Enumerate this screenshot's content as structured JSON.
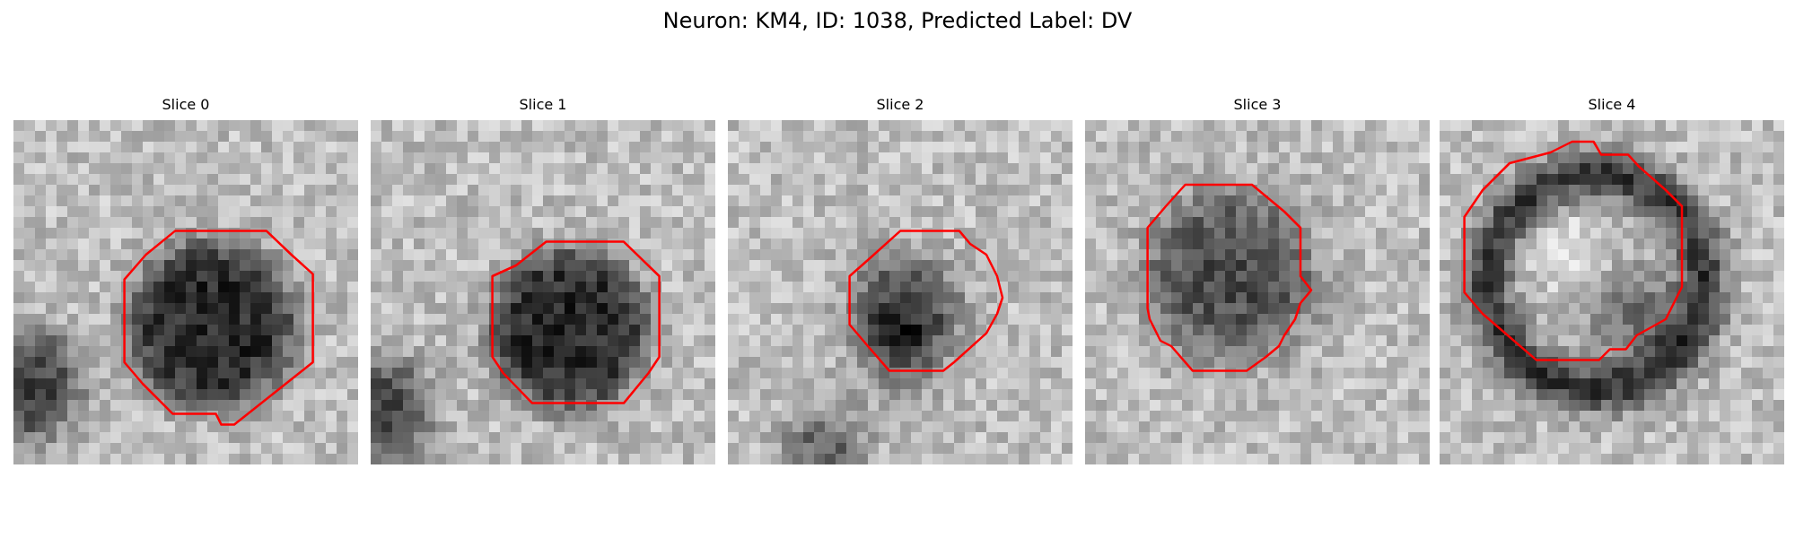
{
  "figure": {
    "title": "Neuron: KM4, ID: 1038, Predicted Label: DV"
  },
  "contour_color": "#ff0000",
  "slices": [
    {
      "title": "Slice 0"
    },
    {
      "title": "Slice 1"
    },
    {
      "title": "Slice 2"
    },
    {
      "title": "Slice 3"
    },
    {
      "title": "Slice 4"
    }
  ]
}
